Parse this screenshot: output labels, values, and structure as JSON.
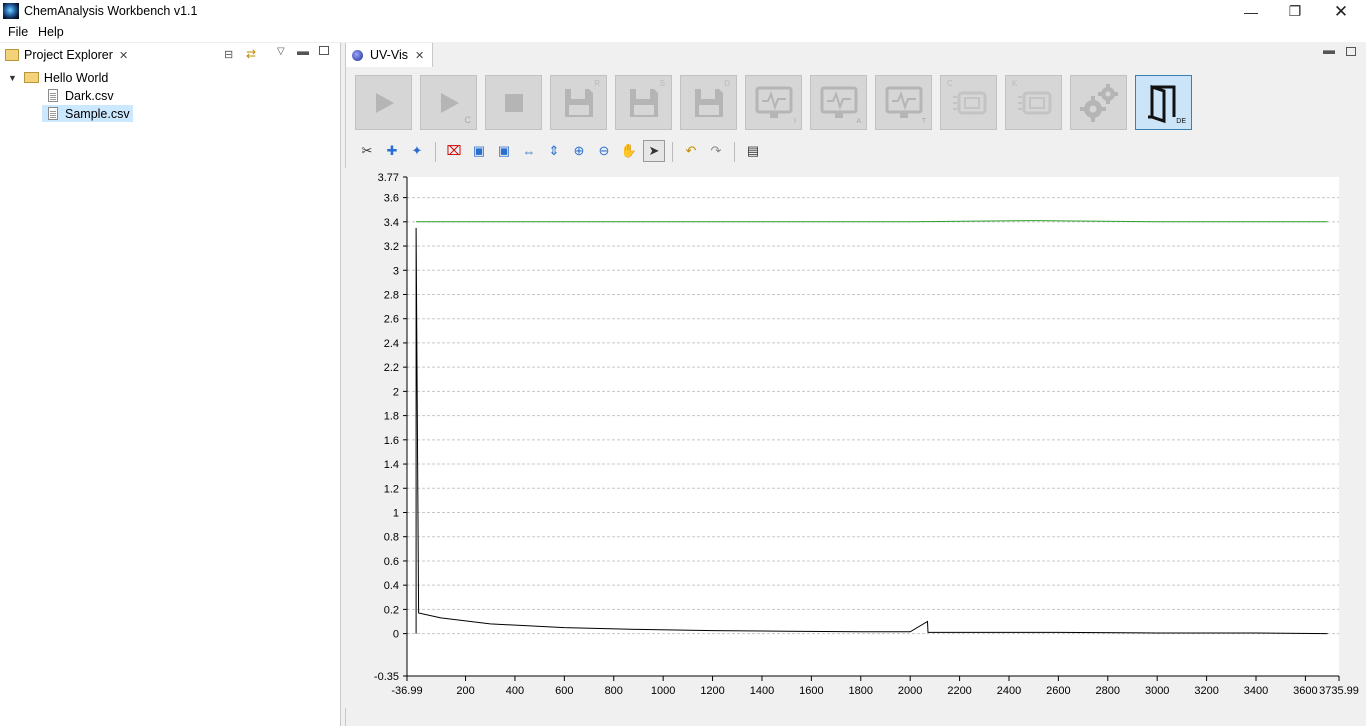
{
  "window": {
    "title": "ChemAnalysis Workbench v1.1",
    "minimize_icon": "minimize-icon",
    "restore_icon": "restore-icon",
    "close_icon": "close-icon"
  },
  "menu": {
    "items": [
      {
        "label": "File"
      },
      {
        "label": "Help"
      }
    ]
  },
  "project_explorer": {
    "tab_label": "Project Explorer",
    "tree": {
      "root": {
        "label": "Hello World",
        "expanded": true
      },
      "children": [
        {
          "label": "Dark.csv",
          "selected": false
        },
        {
          "label": "Sample.csv",
          "selected": true
        }
      ]
    }
  },
  "editor": {
    "tab_label": "UV-Vis",
    "toolbar_buttons": [
      {
        "icon": "play-icon",
        "enabled": false
      },
      {
        "icon": "play-continuous-icon",
        "enabled": false,
        "sub": "C"
      },
      {
        "icon": "stop-icon",
        "enabled": false
      },
      {
        "icon": "save-r-icon",
        "enabled": false,
        "sup": "R"
      },
      {
        "icon": "save-s-icon",
        "enabled": false,
        "sup": "S"
      },
      {
        "icon": "save-d-icon",
        "enabled": false,
        "sup": "D"
      },
      {
        "icon": "monitor-i-icon",
        "enabled": false,
        "sub": "I"
      },
      {
        "icon": "monitor-a-icon",
        "enabled": false,
        "sub": "A"
      },
      {
        "icon": "monitor-t-icon",
        "enabled": false,
        "sub": "T"
      },
      {
        "icon": "c-list-icon",
        "enabled": false,
        "sup": "C"
      },
      {
        "icon": "k-list-icon",
        "enabled": false,
        "sup": "K"
      },
      {
        "icon": "settings-gears-icon",
        "enabled": false
      },
      {
        "icon": "door-de-icon",
        "enabled": true,
        "sub": "DE"
      }
    ]
  },
  "chart_data": {
    "type": "line",
    "xlim": [
      -36.99,
      3735.99
    ],
    "ylim": [
      -0.35,
      3.77
    ],
    "x_ticks": [
      "-36.99",
      "200",
      "400",
      "600",
      "800",
      "1000",
      "1200",
      "1400",
      "1600",
      "1800",
      "2000",
      "2200",
      "2400",
      "2600",
      "2800",
      "3000",
      "3200",
      "3400",
      "3600",
      "3735.99"
    ],
    "y_ticks": [
      "3.77",
      "3.6",
      "3.4",
      "3.2",
      "3",
      "2.8",
      "2.6",
      "2.4",
      "2.2",
      "2",
      "1.8",
      "1.6",
      "1.4",
      "1.2",
      "1",
      "0.8",
      "0.6",
      "0.4",
      "0.2",
      "0",
      "-0.35"
    ],
    "grid": true,
    "series": [
      {
        "color": "#2ca02c",
        "x": [
          0,
          500,
          1000,
          1500,
          2000,
          2500,
          3000,
          3500,
          3690
        ],
        "y": [
          3.4,
          3.4,
          3.4,
          3.4,
          3.4,
          3.41,
          3.4,
          3.4,
          3.4
        ]
      },
      {
        "color": "#000000",
        "x": [
          0,
          0,
          10,
          100,
          300,
          600,
          900,
          1200,
          1500,
          1800,
          2000,
          2070,
          2072,
          2075,
          2300,
          2600,
          3000,
          3400,
          3690
        ],
        "y": [
          0,
          3.35,
          0.17,
          0.13,
          0.08,
          0.05,
          0.035,
          0.025,
          0.02,
          0.015,
          0.015,
          0.1,
          0.01,
          0.01,
          0.01,
          0.01,
          0.005,
          0.005,
          0.0
        ]
      }
    ]
  }
}
